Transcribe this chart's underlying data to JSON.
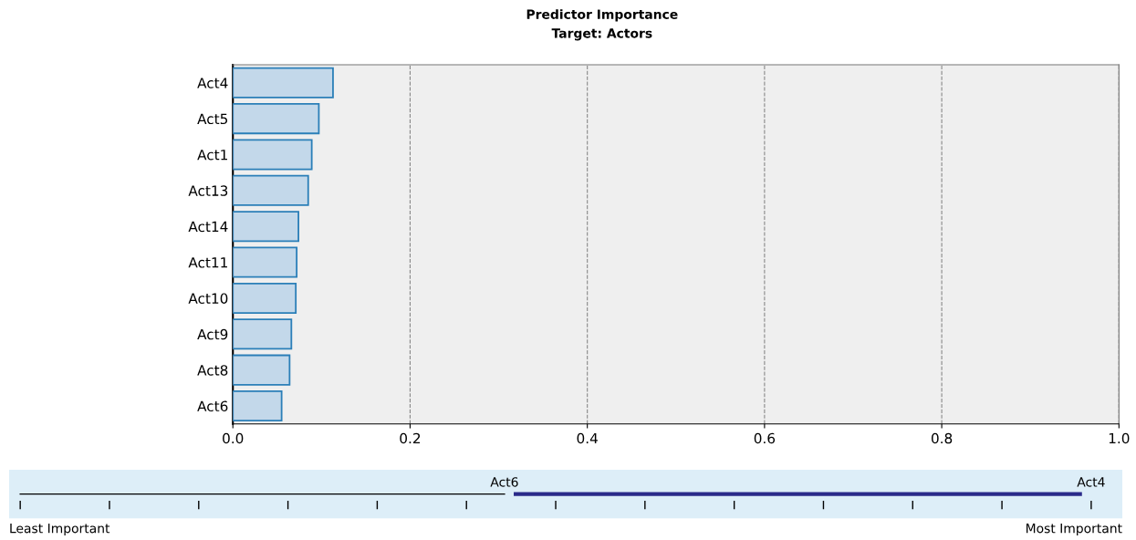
{
  "chart_data": {
    "type": "bar",
    "orientation": "horizontal",
    "title": "Predictor Importance",
    "subtitle": "Target: Actors",
    "categories": [
      "Act4",
      "Act5",
      "Act1",
      "Act13",
      "Act14",
      "Act11",
      "Act10",
      "Act9",
      "Act8",
      "Act6"
    ],
    "values": [
      0.113,
      0.097,
      0.089,
      0.085,
      0.074,
      0.072,
      0.071,
      0.066,
      0.064,
      0.055
    ],
    "color": "#c3d8ea",
    "xlim": [
      0,
      1
    ],
    "xticks": [
      {
        "value": 0,
        "label": "0.0"
      },
      0.2,
      0.4,
      0.6,
      0.8,
      {
        "value": 1,
        "label": "1.0"
      }
    ],
    "grid": "x",
    "line_style": "dashed",
    "annotations": [
      "Act6",
      "Act4",
      "Least Important",
      "Most Important"
    ]
  }
}
